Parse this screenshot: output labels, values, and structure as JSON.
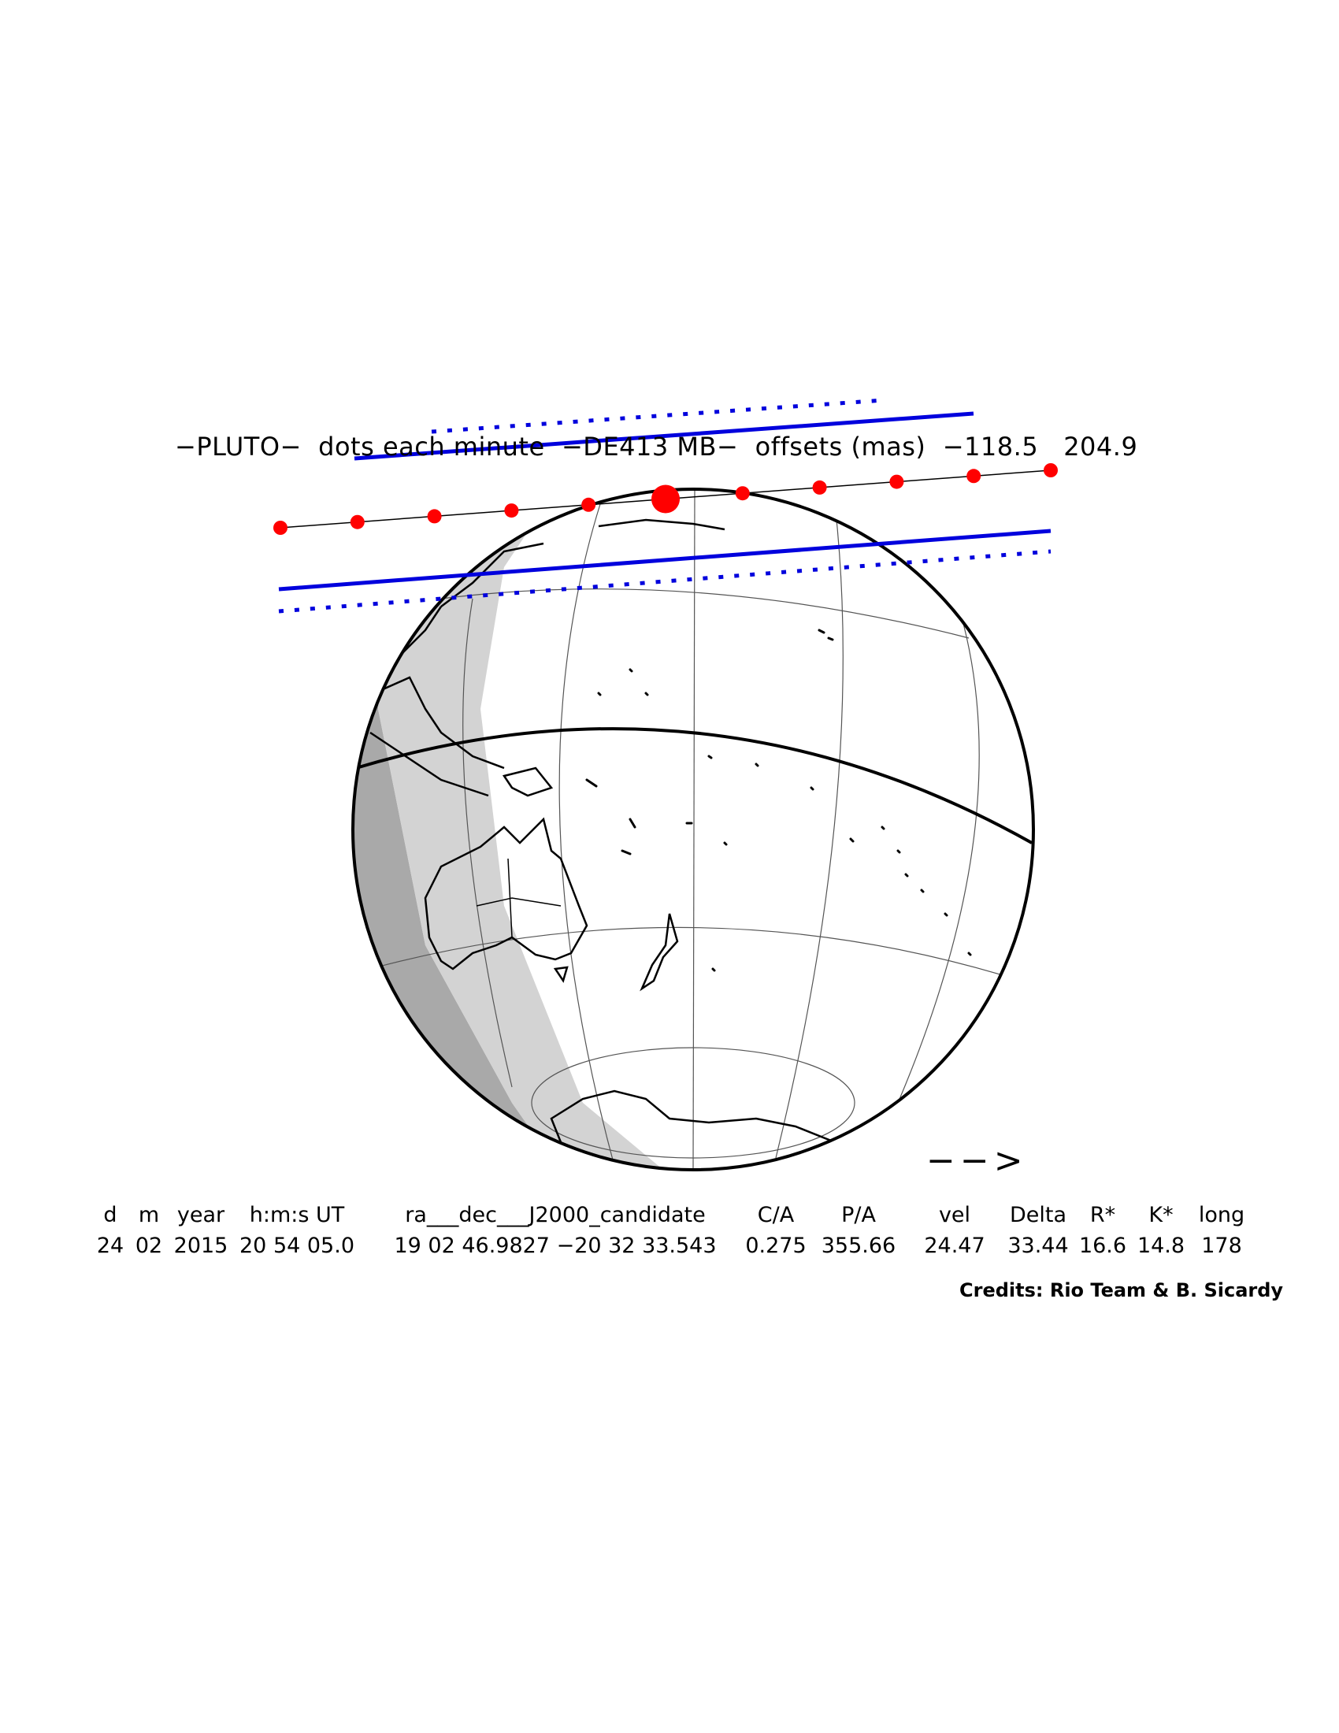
{
  "title": "−PLUTO−  dots each minute  −DE413 MB−  offsets (mas)  −118.5   204.9",
  "direction_arrow": "−−>",
  "table": {
    "headers": [
      "d",
      "m",
      "year",
      "h:m:s UT",
      "ra___dec___J2000_candidate",
      "C/A",
      "P/A",
      "vel",
      "Delta",
      "R*",
      "K*",
      "long"
    ],
    "values": [
      "24",
      "02",
      "2015",
      "20 54 05.0",
      "19 02 46.9827 −20 32 33.543",
      "0.275",
      "355.66",
      "24.47",
      "33.44",
      "16.6",
      "14.8",
      "178"
    ]
  },
  "credits": "Credits: Rio Team & B. Sicardy",
  "colors": {
    "track_dots": "#ff0000",
    "shadow_limits": "#0000dd",
    "night_shade": "#d3d3d3",
    "deep_night_shade": "#a9a9a9",
    "coastlines": "#000000"
  },
  "map_elements": {
    "globe": "orthographic-earth",
    "continents": [
      "australia",
      "new-zealand",
      "antarctica",
      "southeast-asia"
    ],
    "central_dot_index": 5,
    "dot_count": 11
  }
}
